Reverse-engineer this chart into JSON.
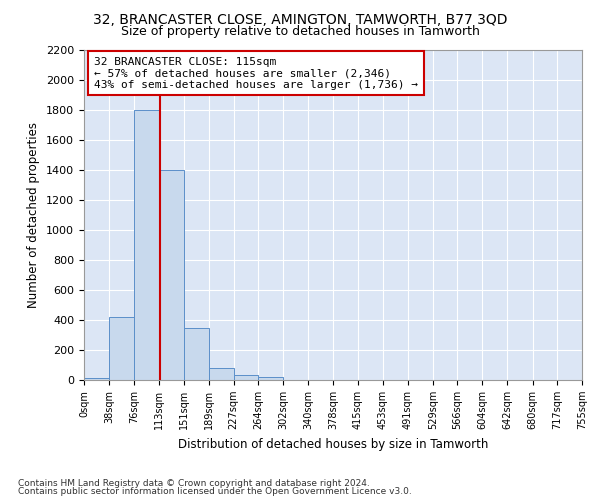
{
  "title": "32, BRANCASTER CLOSE, AMINGTON, TAMWORTH, B77 3QD",
  "subtitle": "Size of property relative to detached houses in Tamworth",
  "xlabel": "Distribution of detached houses by size in Tamworth",
  "ylabel": "Number of detached properties",
  "footer_line1": "Contains HM Land Registry data © Crown copyright and database right 2024.",
  "footer_line2": "Contains public sector information licensed under the Open Government Licence v3.0.",
  "property_size": 115,
  "annotation_line1": "32 BRANCASTER CLOSE: 115sqm",
  "annotation_line2": "← 57% of detached houses are smaller (2,346)",
  "annotation_line3": "43% of semi-detached houses are larger (1,736) →",
  "bin_edges": [
    0,
    38,
    76,
    113,
    151,
    189,
    227,
    264,
    302,
    340,
    378,
    415,
    453,
    491,
    529,
    566,
    604,
    642,
    680,
    717,
    755
  ],
  "bar_heights": [
    15,
    420,
    1800,
    1400,
    350,
    80,
    35,
    18,
    0,
    0,
    0,
    0,
    0,
    0,
    0,
    0,
    0,
    0,
    0,
    0
  ],
  "bar_color": "#c8d9ed",
  "bar_edge_color": "#5b8fc9",
  "red_line_color": "#cc0000",
  "annotation_box_edgecolor": "#cc0000",
  "plot_bg_color": "#dce6f5",
  "fig_bg_color": "#ffffff",
  "grid_color": "#ffffff",
  "ylim": [
    0,
    2200
  ],
  "yticks": [
    0,
    200,
    400,
    600,
    800,
    1000,
    1200,
    1400,
    1600,
    1800,
    2000,
    2200
  ]
}
